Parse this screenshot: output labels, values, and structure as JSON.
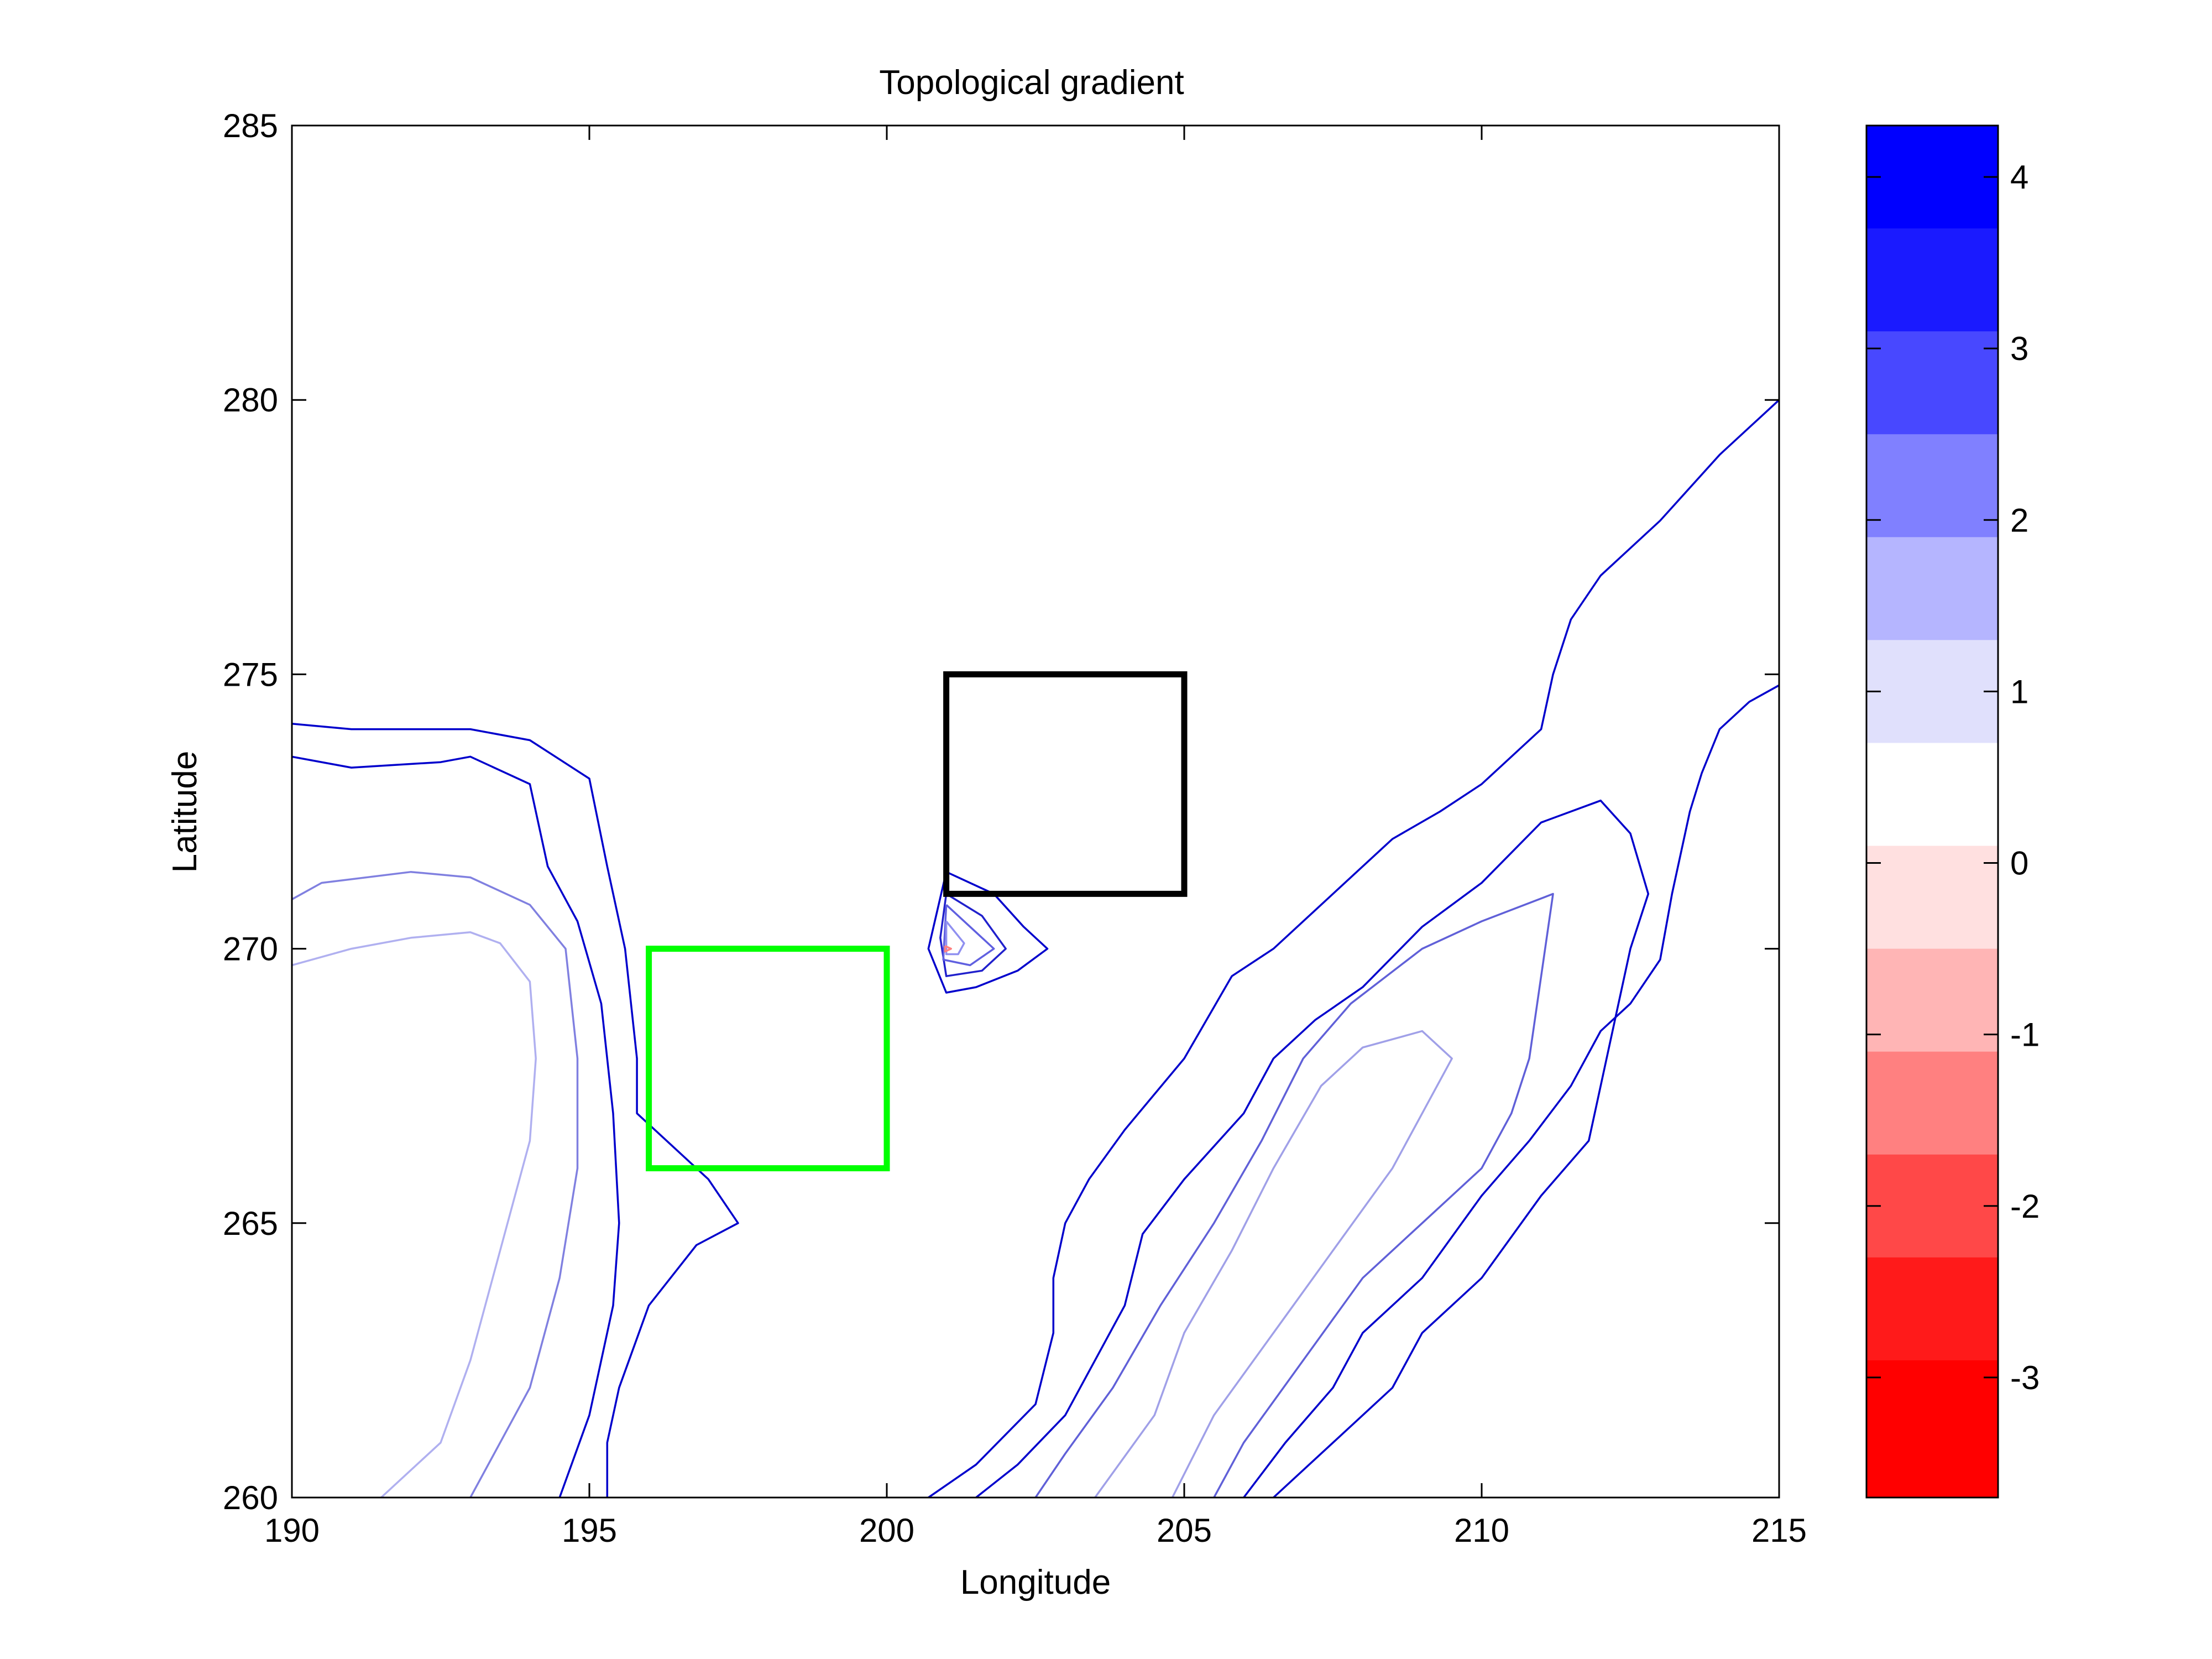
{
  "chart_data": {
    "type": "contour",
    "title": "Topological gradient",
    "xlabel": "Longitude",
    "ylabel": "Latitude",
    "xlim": [
      190,
      215
    ],
    "ylim": [
      260,
      285
    ],
    "xticks": [
      "190",
      "195",
      "200",
      "205",
      "210",
      "215"
    ],
    "yticks": [
      "260",
      "265",
      "270",
      "275",
      "280",
      "285"
    ],
    "grid": false,
    "colorbar": {
      "range": [
        -3.7,
        4.3
      ],
      "tick_labels": [
        "4",
        "3",
        "2",
        "1",
        "0",
        "-1",
        "-2",
        "-3"
      ],
      "tick_values": [
        4,
        3,
        2,
        1,
        0,
        -1,
        -2,
        -3
      ],
      "levels": [
        {
          "from": 3.7,
          "to": 4.3,
          "color": "#0000ff"
        },
        {
          "from": 3.1,
          "to": 3.7,
          "color": "#1a1aff"
        },
        {
          "from": 2.5,
          "to": 3.1,
          "color": "#4848ff"
        },
        {
          "from": 1.9,
          "to": 2.5,
          "color": "#8080ff"
        },
        {
          "from": 1.3,
          "to": 1.9,
          "color": "#b5b5ff"
        },
        {
          "from": 0.7,
          "to": 1.3,
          "color": "#e0e0fc"
        },
        {
          "from": 0.1,
          "to": 0.7,
          "color": "#ffffff"
        },
        {
          "from": -0.5,
          "to": 0.1,
          "color": "#ffe0e0"
        },
        {
          "from": -1.1,
          "to": -0.5,
          "color": "#ffb5b5"
        },
        {
          "from": -1.7,
          "to": -1.1,
          "color": "#ff8080"
        },
        {
          "from": -2.3,
          "to": -1.7,
          "color": "#ff4848"
        },
        {
          "from": -2.9,
          "to": -2.3,
          "color": "#ff1a1a"
        },
        {
          "from": -3.7,
          "to": -2.9,
          "color": "#ff0000"
        }
      ]
    },
    "rectangles": [
      {
        "color": "#000000",
        "x": [
          201,
          205
        ],
        "y": [
          271,
          275
        ]
      },
      {
        "color": "#00ff00",
        "x": [
          196,
          200
        ],
        "y": [
          266,
          270
        ]
      }
    ],
    "contours": [
      {
        "color": "#0000cc",
        "points": [
          [
            190,
            274.1
          ],
          [
            191,
            274
          ],
          [
            193,
            274
          ],
          [
            194,
            273.8
          ],
          [
            195,
            273.1
          ],
          [
            195.3,
            271.5
          ],
          [
            195.6,
            270
          ],
          [
            195.8,
            268
          ],
          [
            195.8,
            267
          ],
          [
            197,
            265.8
          ],
          [
            197.5,
            265
          ],
          [
            196.8,
            264.6
          ],
          [
            196,
            263.5
          ],
          [
            195.5,
            262
          ],
          [
            195.3,
            261
          ],
          [
            195.3,
            260
          ]
        ]
      },
      {
        "color": "#0000cc",
        "points": [
          [
            190,
            273.5
          ],
          [
            191,
            273.3
          ],
          [
            192.5,
            273.4
          ],
          [
            193,
            273.5
          ],
          [
            194,
            273
          ],
          [
            194.3,
            271.5
          ],
          [
            194.8,
            270.5
          ],
          [
            195.2,
            269
          ],
          [
            195.4,
            267
          ],
          [
            195.5,
            265
          ],
          [
            195.4,
            263.5
          ],
          [
            195,
            261.5
          ],
          [
            194.5,
            260
          ]
        ]
      },
      {
        "color": "#8080e0",
        "points": [
          [
            190,
            270.9
          ],
          [
            190.5,
            271.2
          ],
          [
            192,
            271.4
          ],
          [
            193,
            271.3
          ],
          [
            194,
            270.8
          ],
          [
            194.6,
            270
          ],
          [
            194.8,
            268
          ],
          [
            194.8,
            266
          ],
          [
            194.5,
            264
          ],
          [
            194,
            262
          ],
          [
            193.5,
            261
          ],
          [
            193,
            260
          ]
        ]
      },
      {
        "color": "#b0b0f0",
        "points": [
          [
            190,
            269.7
          ],
          [
            191,
            270
          ],
          [
            192,
            270.2
          ],
          [
            193,
            270.3
          ],
          [
            193.5,
            270.1
          ],
          [
            194,
            269.4
          ],
          [
            194.1,
            268
          ],
          [
            194,
            266.5
          ],
          [
            193.5,
            264.5
          ],
          [
            193,
            262.5
          ],
          [
            192.5,
            261
          ],
          [
            191.5,
            260
          ]
        ]
      },
      {
        "color": "#0000cc",
        "points": [
          [
            200.7,
            260
          ],
          [
            201.5,
            260.6
          ],
          [
            202.5,
            261.7
          ],
          [
            202.8,
            263
          ],
          [
            202.8,
            264
          ],
          [
            203,
            265
          ],
          [
            203.4,
            265.8
          ],
          [
            204,
            266.7
          ],
          [
            205,
            268
          ],
          [
            205.8,
            269.5
          ],
          [
            206.5,
            270
          ],
          [
            207.5,
            271
          ],
          [
            208.5,
            272
          ],
          [
            209.3,
            272.5
          ],
          [
            210,
            273
          ],
          [
            211,
            274
          ],
          [
            211.2,
            275
          ],
          [
            211.5,
            276
          ],
          [
            212,
            276.8
          ],
          [
            213,
            277.8
          ],
          [
            214,
            279
          ],
          [
            215,
            280
          ]
        ]
      },
      {
        "color": "#0000cc",
        "points": [
          [
            201.5,
            260
          ],
          [
            202.2,
            260.6
          ],
          [
            203,
            261.5
          ],
          [
            203.5,
            262.5
          ],
          [
            204,
            263.5
          ],
          [
            204.3,
            264.8
          ],
          [
            205,
            265.8
          ],
          [
            206,
            267
          ],
          [
            206.5,
            268
          ],
          [
            207.2,
            268.7
          ],
          [
            208,
            269.3
          ],
          [
            209,
            270.4
          ],
          [
            210,
            271.2
          ],
          [
            211,
            272.3
          ],
          [
            212,
            272.7
          ],
          [
            212.5,
            272.1
          ],
          [
            212.8,
            271
          ],
          [
            212.5,
            270
          ],
          [
            212.2,
            268.5
          ],
          [
            212,
            267.5
          ],
          [
            211.8,
            266.5
          ],
          [
            211,
            265.5
          ],
          [
            210,
            264
          ],
          [
            209,
            263
          ],
          [
            208.5,
            262
          ],
          [
            207.5,
            261
          ],
          [
            206.5,
            260
          ]
        ]
      },
      {
        "color": "#0000cc",
        "points": [
          [
            215,
            274.8
          ],
          [
            214.5,
            274.5
          ],
          [
            214,
            274
          ],
          [
            213.7,
            273.2
          ],
          [
            213.5,
            272.5
          ],
          [
            213.2,
            271
          ],
          [
            213,
            269.8
          ],
          [
            212.5,
            269
          ],
          [
            212,
            268.5
          ],
          [
            211.5,
            267.5
          ],
          [
            210.8,
            266.5
          ],
          [
            210,
            265.5
          ],
          [
            209,
            264
          ],
          [
            208,
            263
          ],
          [
            207.5,
            262
          ],
          [
            206.7,
            261
          ],
          [
            206,
            260
          ]
        ]
      },
      {
        "color": "#6060d8",
        "points": [
          [
            202.5,
            260
          ],
          [
            203,
            260.8
          ],
          [
            203.8,
            262
          ],
          [
            204.6,
            263.5
          ],
          [
            205.5,
            265
          ],
          [
            206.3,
            266.5
          ],
          [
            207,
            268
          ],
          [
            207.8,
            269
          ],
          [
            209,
            270
          ],
          [
            210,
            270.5
          ],
          [
            211.2,
            271
          ],
          [
            211,
            269.5
          ],
          [
            210.8,
            268
          ],
          [
            210.5,
            267
          ],
          [
            210,
            266
          ],
          [
            209,
            265
          ],
          [
            208,
            264
          ],
          [
            207,
            262.5
          ],
          [
            206,
            261
          ],
          [
            205.5,
            260
          ]
        ]
      },
      {
        "color": "#a0a0e8",
        "points": [
          [
            203.5,
            260
          ],
          [
            204.5,
            261.5
          ],
          [
            205,
            263
          ],
          [
            205.8,
            264.5
          ],
          [
            206.5,
            266
          ],
          [
            207.3,
            267.5
          ],
          [
            208,
            268.2
          ],
          [
            209,
            268.5
          ],
          [
            209.5,
            268
          ],
          [
            209,
            267
          ],
          [
            208.5,
            266
          ],
          [
            207.5,
            264.5
          ],
          [
            206.5,
            263
          ],
          [
            205.5,
            261.5
          ],
          [
            204.8,
            260
          ]
        ]
      },
      {
        "color": "#0000cc",
        "points": [
          [
            201,
            271.4
          ],
          [
            201.8,
            271
          ],
          [
            202.3,
            270.4
          ],
          [
            202.7,
            270
          ],
          [
            202.2,
            269.6
          ],
          [
            201.5,
            269.3
          ],
          [
            201,
            269.2
          ],
          [
            200.7,
            270
          ],
          [
            201,
            271.4
          ]
        ]
      },
      {
        "color": "#2020cc",
        "points": [
          [
            201,
            271
          ],
          [
            201.6,
            270.6
          ],
          [
            202,
            270
          ],
          [
            201.6,
            269.6
          ],
          [
            201,
            269.5
          ],
          [
            200.9,
            270.2
          ],
          [
            201,
            271
          ]
        ]
      },
      {
        "color": "#6060e0",
        "points": [
          [
            201,
            270.8
          ],
          [
            201.5,
            270.3
          ],
          [
            201.8,
            270
          ],
          [
            201.4,
            269.7
          ],
          [
            200.95,
            269.8
          ],
          [
            201,
            270.8
          ]
        ]
      },
      {
        "color": "#9090f0",
        "points": [
          [
            201,
            270.5
          ],
          [
            201.3,
            270.1
          ],
          [
            201.2,
            269.9
          ],
          [
            201,
            269.9
          ],
          [
            201,
            270.5
          ]
        ]
      },
      {
        "color": "#ff8080",
        "points": [
          [
            200.98,
            270.05
          ],
          [
            201.08,
            270
          ],
          [
            200.98,
            269.95
          ],
          [
            200.98,
            270.05
          ]
        ]
      }
    ]
  }
}
